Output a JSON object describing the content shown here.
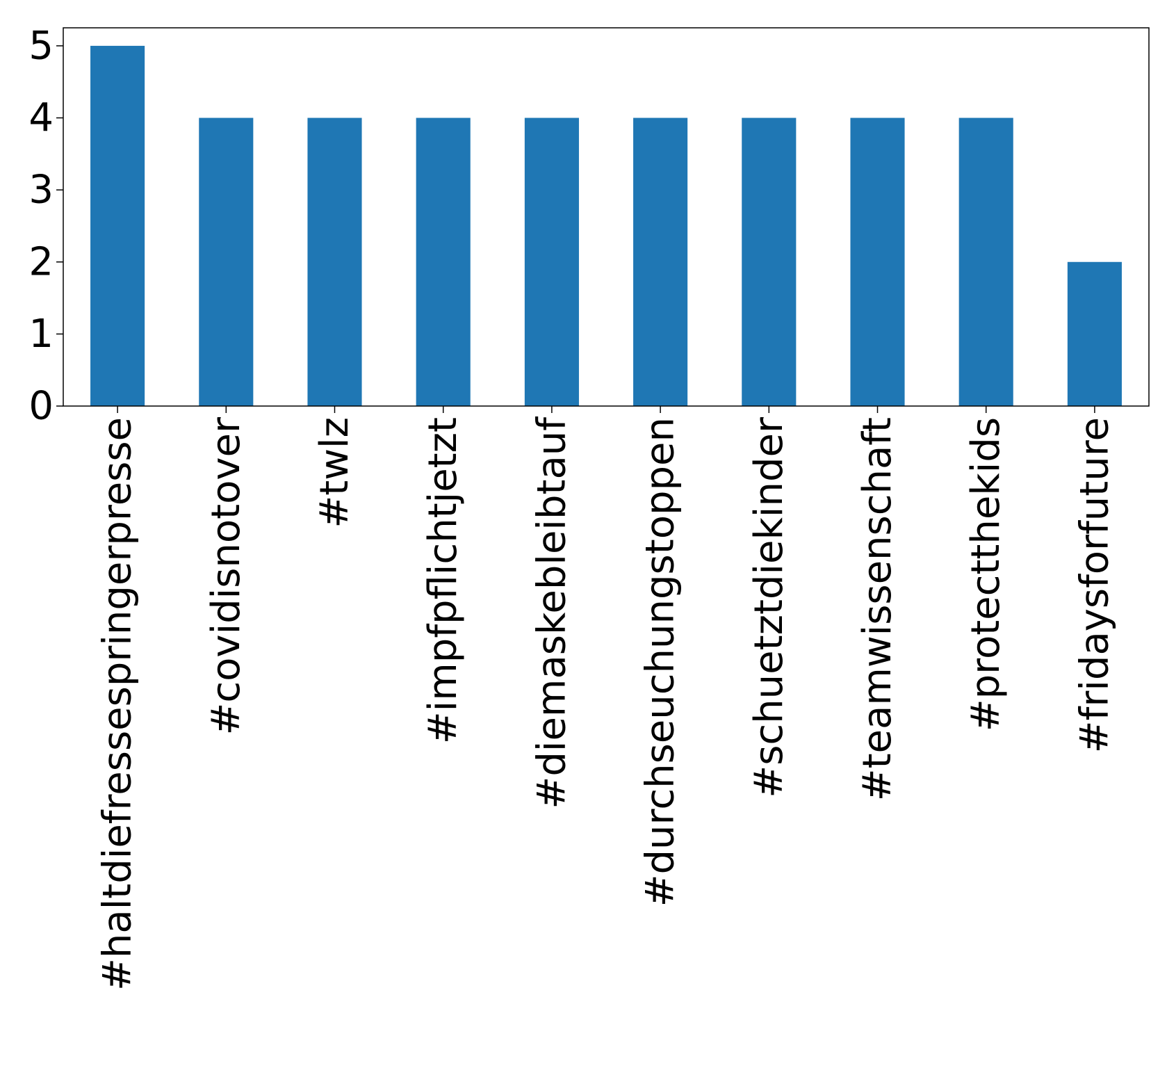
{
  "chart_data": {
    "type": "bar",
    "title": "",
    "xlabel": "",
    "ylabel": "",
    "categories": [
      "#haltdiefressespringerpresse",
      "#covidisnotover",
      "#twlz",
      "#impfpflichtjetzt",
      "#diemaskebleibtauf",
      "#durchseuchungstoppen",
      "#schuetztdiekinder",
      "#teamwissenschaft",
      "#protectthekids",
      "#fridaysforfuture"
    ],
    "values": [
      5,
      4,
      4,
      4,
      4,
      4,
      4,
      4,
      4,
      2
    ],
    "ylim": [
      0,
      5.25
    ],
    "yticks": [
      "0",
      "1",
      "2",
      "3",
      "4",
      "5"
    ],
    "grid": false,
    "bar_color": "#1f77b4"
  }
}
